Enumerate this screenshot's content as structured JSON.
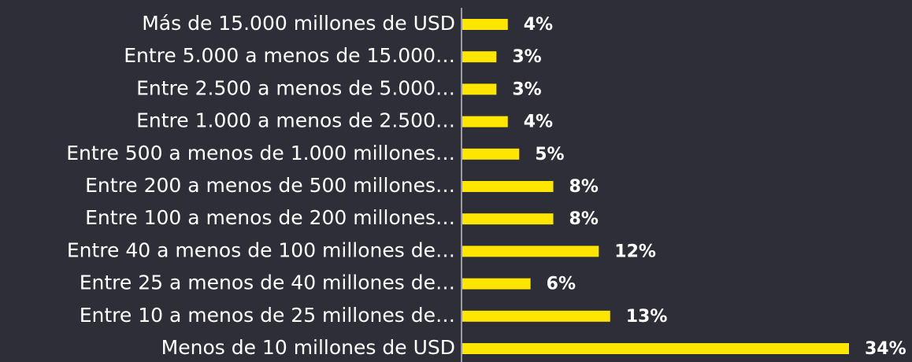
{
  "chart_data": {
    "type": "bar",
    "orientation": "horizontal",
    "categories": [
      "Más de 15.000 millones de USD",
      "Entre 5.000 a menos de 15.000…",
      "Entre 2.500 a menos de 5.000…",
      "Entre 1.000 a menos de 2.500…",
      "Entre 500 a menos de 1.000 millones…",
      "Entre 200 a menos de 500 millones…",
      "Entre 100 a menos de 200 millones…",
      "Entre 40 a menos de 100 millones de…",
      "Entre 25 a menos de 40 millones de…",
      "Entre 10 a menos de 25 millones de…",
      "Menos de 10 millones de USD"
    ],
    "values": [
      4,
      3,
      3,
      4,
      5,
      8,
      8,
      12,
      6,
      13,
      34
    ],
    "value_labels": [
      "4%",
      "3%",
      "3%",
      "4%",
      "5%",
      "8%",
      "8%",
      "12%",
      "6%",
      "13%",
      "34%"
    ],
    "color": "#ffe600"
  }
}
